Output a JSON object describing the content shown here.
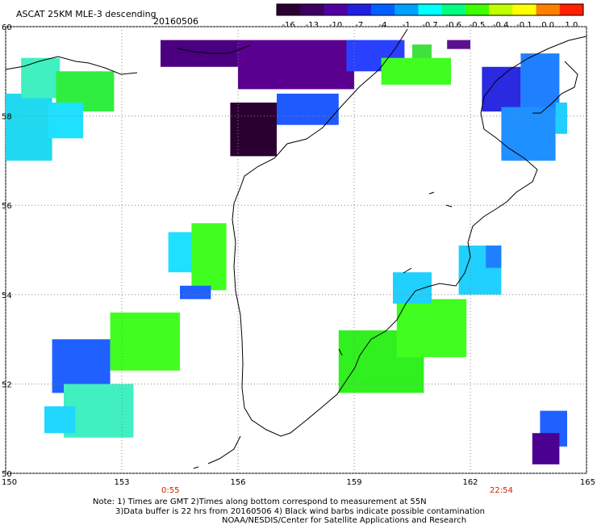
{
  "header": {
    "title": "ASCAT 25KM MLE-3 descending",
    "date": "20160506"
  },
  "colorbar": {
    "labels": [
      "-16",
      "-13",
      "-10",
      "-7",
      "-4",
      "-1",
      "-0.7",
      "-0.6",
      "-0.5",
      "-0.4",
      "-0.1",
      "0.0",
      "1.0"
    ],
    "colors": [
      "#2a0030",
      "#3c0060",
      "#5000a0",
      "#2020e0",
      "#0060ff",
      "#00a0ff",
      "#00ffff",
      "#00ff80",
      "#40ff00",
      "#c0ff00",
      "#ffff00",
      "#ff8000",
      "#ff2000"
    ]
  },
  "map": {
    "lon_range": [
      150,
      165
    ],
    "lat_range": [
      50,
      60
    ],
    "lon_ticks": [
      "150",
      "153",
      "156",
      "159",
      "162",
      "165"
    ],
    "lat_ticks": [
      "60",
      "58",
      "56",
      "54",
      "52",
      "50"
    ],
    "lat_tick_values": [
      60,
      58,
      56,
      54,
      52,
      50
    ],
    "lon_tick_values": [
      150,
      153,
      156,
      159,
      162,
      165
    ]
  },
  "times": {
    "left": "0:55",
    "right": "22:54"
  },
  "notes": {
    "line1": "Note: 1) Times are GMT 2)Times along bottom correspond to measurement at 55N",
    "line2": "3)Data buffer is 22 hrs from 20160506 4) Black wind barbs indicate possible contamination",
    "line3": "NOAA/NESDIS/Center for Satellite Applications and Research"
  },
  "swaths": [
    {
      "lon": [
        154.0,
        156.0
      ],
      "lat": [
        59.1,
        59.7
      ],
      "color": "#4a0080"
    },
    {
      "lon": [
        156.0,
        159.0
      ],
      "lat": [
        58.6,
        59.7
      ],
      "color": "#5a0090"
    },
    {
      "lon": [
        158.8,
        160.3
      ],
      "lat": [
        59.0,
        59.7
      ],
      "color": "#2a40ff"
    },
    {
      "lon": [
        160.5,
        161.0
      ],
      "lat": [
        59.0,
        59.6
      ],
      "color": "#40e040"
    },
    {
      "lon": [
        159.7,
        161.5
      ],
      "lat": [
        58.7,
        59.3
      ],
      "color": "#40ff20"
    },
    {
      "lon": [
        161.4,
        162.0
      ],
      "lat": [
        59.5,
        59.7
      ],
      "color": "#5a1090"
    },
    {
      "lon": [
        155.8,
        157.0
      ],
      "lat": [
        57.1,
        58.3
      ],
      "color": "#2a0030"
    },
    {
      "lon": [
        157.0,
        158.6
      ],
      "lat": [
        57.8,
        58.5
      ],
      "color": "#1f5aff"
    },
    {
      "lon": [
        150.0,
        151.2
      ],
      "lat": [
        57.0,
        58.5
      ],
      "color": "#20d8f0"
    },
    {
      "lon": [
        150.4,
        151.4
      ],
      "lat": [
        58.4,
        59.3
      ],
      "color": "#40f0c0"
    },
    {
      "lon": [
        151.3,
        152.8
      ],
      "lat": [
        58.1,
        59.0
      ],
      "color": "#30ee40"
    },
    {
      "lon": [
        151.1,
        152.0
      ],
      "lat": [
        57.5,
        58.3
      ],
      "color": "#20e0ff"
    },
    {
      "lon": [
        162.3,
        163.3
      ],
      "lat": [
        58.1,
        59.1
      ],
      "color": "#2a2ae0"
    },
    {
      "lon": [
        163.3,
        164.3
      ],
      "lat": [
        58.0,
        59.4
      ],
      "color": "#1f80ff"
    },
    {
      "lon": [
        162.8,
        164.2
      ],
      "lat": [
        57.0,
        58.2
      ],
      "color": "#1f90ff"
    },
    {
      "lon": [
        164.2,
        164.5
      ],
      "lat": [
        57.6,
        58.3
      ],
      "color": "#20d0ff"
    },
    {
      "lon": [
        154.2,
        155.4
      ],
      "lat": [
        54.5,
        55.4
      ],
      "color": "#20e0ff"
    },
    {
      "lon": [
        154.8,
        155.7
      ],
      "lat": [
        54.1,
        55.6
      ],
      "color": "#40ff20"
    },
    {
      "lon": [
        154.5,
        155.3
      ],
      "lat": [
        53.9,
        54.2
      ],
      "color": "#1f60ff"
    },
    {
      "lon": [
        151.2,
        152.7
      ],
      "lat": [
        51.8,
        53.0
      ],
      "color": "#1f60ff"
    },
    {
      "lon": [
        152.7,
        154.5
      ],
      "lat": [
        52.3,
        53.6
      ],
      "color": "#40ff20"
    },
    {
      "lon": [
        151.5,
        153.3
      ],
      "lat": [
        50.8,
        52.0
      ],
      "color": "#40f0c0"
    },
    {
      "lon": [
        151.0,
        151.8
      ],
      "lat": [
        50.9,
        51.5
      ],
      "color": "#20d8ff"
    },
    {
      "lon": [
        158.6,
        160.8
      ],
      "lat": [
        51.8,
        53.2
      ],
      "color": "#30f020"
    },
    {
      "lon": [
        160.1,
        161.9
      ],
      "lat": [
        52.6,
        53.9
      ],
      "color": "#40ff20"
    },
    {
      "lon": [
        160.0,
        161.0
      ],
      "lat": [
        53.8,
        54.5
      ],
      "color": "#20d0ff"
    },
    {
      "lon": [
        161.7,
        162.8
      ],
      "lat": [
        54.0,
        55.1
      ],
      "color": "#20d0ff"
    },
    {
      "lon": [
        162.4,
        162.8
      ],
      "lat": [
        54.6,
        55.1
      ],
      "color": "#1f80ff"
    },
    {
      "lon": [
        163.8,
        164.5
      ],
      "lat": [
        50.6,
        51.4
      ],
      "color": "#1f60ff"
    },
    {
      "lon": [
        163.6,
        164.3
      ],
      "lat": [
        50.2,
        50.9
      ],
      "color": "#4a0090"
    }
  ]
}
